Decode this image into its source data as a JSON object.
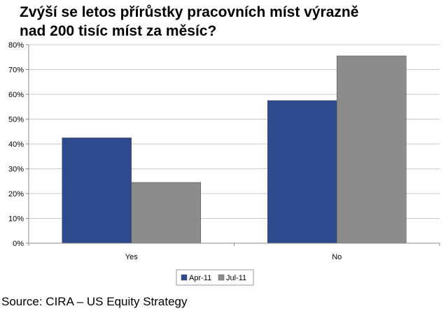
{
  "title_line1": "Zvýší se letos přírůstky pracovních míst výrazně",
  "title_line2": "nad 200 tisíc míst za měsíc?",
  "source": "Source: CIRA – US Equity Strategy",
  "chart_data": {
    "type": "bar",
    "categories": [
      "Yes",
      "No"
    ],
    "series": [
      {
        "name": "Apr-11",
        "values": [
          42.5,
          57.5
        ],
        "color": "#2e4a8e"
      },
      {
        "name": "Jul-11",
        "values": [
          24.5,
          75.5
        ],
        "color": "#8c8c8c"
      }
    ],
    "ylim": [
      0,
      80
    ],
    "yticks": [
      0,
      10,
      20,
      30,
      40,
      50,
      60,
      70,
      80
    ],
    "ytick_format": "percent",
    "grid": true,
    "legend": "bottom-center",
    "gridline_color": "#c8c8c8",
    "axis_color": "#8a8a8a"
  }
}
